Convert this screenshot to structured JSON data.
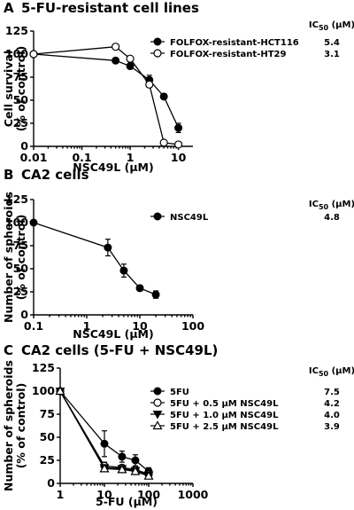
{
  "chart_data": [
    {
      "panel": "A",
      "title": "5-FU-resistant cell lines",
      "type": "line",
      "xscale": "log",
      "xlim": [
        0.01,
        20
      ],
      "ylim": [
        0,
        125
      ],
      "xticks": [
        0.01,
        0.1,
        1,
        10
      ],
      "yticks": [
        0,
        25,
        50,
        75,
        100,
        125
      ],
      "xlabel": "NSC49L (μM)",
      "ylabel": [
        "Cell survival",
        "(% of control)"
      ],
      "legend_position": "top-right",
      "ic50_header": "IC50 (μM)",
      "series": [
        {
          "name": "FOLFOX-resistant-HCT116",
          "marker": "filled-circle",
          "ic50": "5.4",
          "x": [
            0.01,
            0.5,
            1,
            2.5,
            5,
            10
          ],
          "y": [
            100,
            93,
            87,
            72,
            54,
            20
          ],
          "err": [
            0,
            2,
            3,
            5,
            3,
            5
          ]
        },
        {
          "name": "FOLFOX-resistant-HT29",
          "marker": "open-circle",
          "ic50": "3.1",
          "x": [
            0.01,
            0.5,
            1,
            2.5,
            5,
            10
          ],
          "y": [
            100,
            108,
            95,
            67,
            4,
            2
          ],
          "err": [
            0,
            2,
            3,
            3,
            1,
            1
          ]
        }
      ]
    },
    {
      "panel": "B",
      "title": "CA2 cells",
      "type": "line",
      "xscale": "log",
      "xlim": [
        0.1,
        100
      ],
      "ylim": [
        0,
        125
      ],
      "xticks": [
        0.1,
        1,
        10,
        100
      ],
      "yticks": [
        0,
        25,
        50,
        75,
        100,
        125
      ],
      "xlabel": "NSC49L (μM)",
      "ylabel": [
        "Number of spheroids",
        "(% of control)"
      ],
      "legend_position": "top-right",
      "ic50_header": "IC50 (μM)",
      "series": [
        {
          "name": "NSC49L",
          "marker": "filled-circle",
          "ic50": "4.8",
          "x": [
            0.1,
            2.5,
            5,
            10,
            20
          ],
          "y": [
            100,
            73,
            48,
            29,
            22
          ],
          "err": [
            0,
            9,
            7,
            3,
            4
          ]
        }
      ]
    },
    {
      "panel": "C",
      "title": "CA2 cells (5-FU + NSC49L)",
      "type": "line",
      "xscale": "log",
      "xlim": [
        1,
        1000
      ],
      "ylim": [
        0,
        125
      ],
      "xticks": [
        1,
        10,
        100,
        1000
      ],
      "yticks": [
        0,
        25,
        50,
        75,
        100,
        125
      ],
      "xlabel": "5-FU (μM)",
      "ylabel": [
        "Number of spheroids",
        "(% of control)"
      ],
      "legend_position": "top-right",
      "ic50_header": "IC50 (μM)",
      "series": [
        {
          "name": "5FU",
          "marker": "filled-circle",
          "ic50": "7.5",
          "x": [
            1,
            10,
            25,
            50,
            100
          ],
          "y": [
            100,
            43,
            29,
            25,
            13
          ],
          "err": [
            0,
            14,
            6,
            6,
            4
          ]
        },
        {
          "name": "5FU + 0.5 μM NSC49L",
          "marker": "open-circle",
          "ic50": "4.2",
          "x": [
            1,
            10,
            25,
            50,
            100
          ],
          "y": [
            100,
            19,
            17,
            15,
            10
          ],
          "err": [
            0,
            4,
            3,
            3,
            2
          ]
        },
        {
          "name": "5FU + 1.0 μM NSC49L",
          "marker": "filled-triangle-down",
          "ic50": "4.0",
          "x": [
            1,
            10,
            25,
            50,
            100
          ],
          "y": [
            100,
            17,
            16,
            14,
            9
          ],
          "err": [
            0,
            3,
            3,
            2,
            2
          ]
        },
        {
          "name": "5FU + 2.5 μM NSC49L",
          "marker": "open-triangle-up",
          "ic50": "3.9",
          "x": [
            1,
            10,
            25,
            50,
            100
          ],
          "y": [
            100,
            16,
            15,
            13,
            8
          ],
          "err": [
            0,
            3,
            3,
            2,
            2
          ]
        }
      ]
    }
  ]
}
